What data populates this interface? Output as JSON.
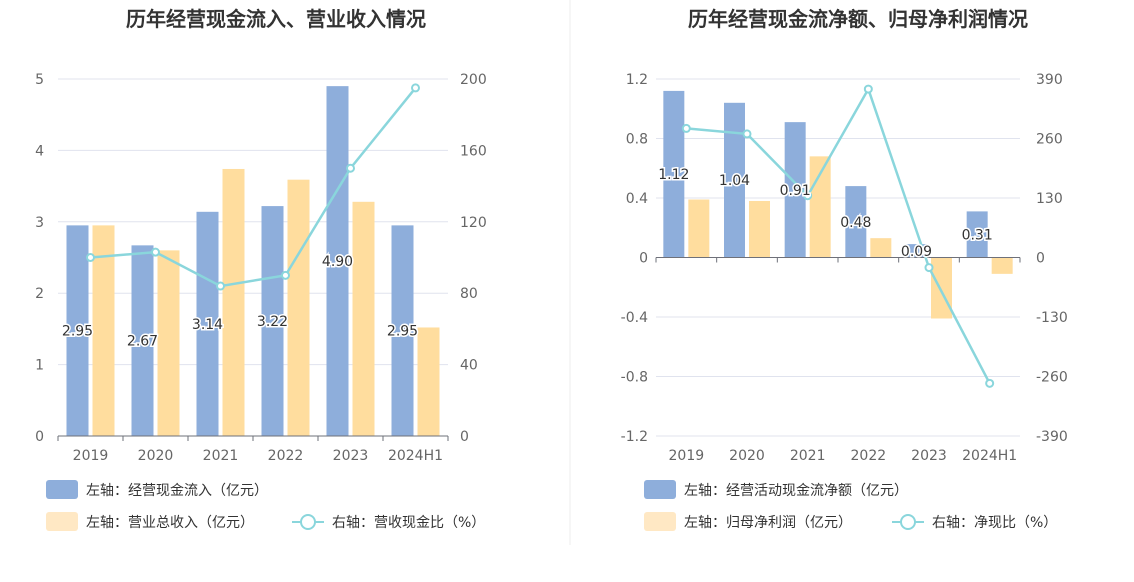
{
  "chart_data": [
    {
      "type": "bar",
      "title": "历年经营现金流入、营业收入情况",
      "categories": [
        "2019",
        "2020",
        "2021",
        "2022",
        "2023",
        "2024H1"
      ],
      "left_axis": {
        "ylim": [
          0,
          5
        ],
        "ticks": [
          "0",
          "1",
          "2",
          "3",
          "4",
          "5"
        ]
      },
      "right_axis": {
        "ylim": [
          0,
          200
        ],
        "ticks": [
          "0",
          "40",
          "80",
          "120",
          "160",
          "200"
        ]
      },
      "series": [
        {
          "name": "左轴：经营现金流入（亿元）",
          "axis": "left",
          "kind": "bar",
          "color": "#8eaedb",
          "values": [
            2.95,
            2.67,
            3.14,
            3.22,
            4.9,
            2.95
          ],
          "labels": [
            "2.95",
            "2.67",
            "3.14",
            "3.22",
            "4.90",
            "2.95"
          ]
        },
        {
          "name": "左轴：营业总收入（亿元）",
          "axis": "left",
          "kind": "bar",
          "color": "#ffdd9e",
          "values": [
            2.95,
            2.6,
            3.74,
            3.59,
            3.28,
            1.52
          ]
        },
        {
          "name": "右轴：营收现金比（%）",
          "axis": "right",
          "kind": "line",
          "color": "#8ad6dc",
          "values": [
            100,
            103,
            84,
            90,
            150,
            195
          ]
        }
      ],
      "legend": [
        {
          "label": "左轴：经营现金流入（亿元）",
          "kind": "bar",
          "color": "#8eaedb"
        },
        {
          "label": "左轴：营业总收入（亿元）",
          "kind": "bar",
          "color": "#ffe8c4"
        },
        {
          "label": "右轴：营收现金比（%）",
          "kind": "line",
          "color": "#8ad6dc"
        }
      ]
    },
    {
      "type": "bar",
      "title": "历年经营现金流净额、归母净利润情况",
      "categories": [
        "2019",
        "2020",
        "2021",
        "2022",
        "2023",
        "2024H1"
      ],
      "left_axis": {
        "ylim": [
          -1.2,
          1.2
        ],
        "ticks": [
          "-1.2",
          "-0.8",
          "-0.4",
          "0",
          "0.4",
          "0.8",
          "1.2"
        ]
      },
      "right_axis": {
        "ylim": [
          -390,
          390
        ],
        "ticks": [
          "-390",
          "-260",
          "-130",
          "0",
          "130",
          "260",
          "390"
        ]
      },
      "series": [
        {
          "name": "左轴：经营活动现金流净额（亿元）",
          "axis": "left",
          "kind": "bar",
          "color": "#8eaedb",
          "values": [
            1.12,
            1.04,
            0.91,
            0.48,
            0.09,
            0.31
          ],
          "labels": [
            "1.12",
            "1.04",
            "0.91",
            "0.48",
            "0.09",
            "0.31"
          ]
        },
        {
          "name": "左轴：归母净利润（亿元）",
          "axis": "left",
          "kind": "bar",
          "color": "#ffdd9e",
          "values": [
            0.39,
            0.38,
            0.68,
            0.13,
            -0.41,
            -0.11
          ]
        },
        {
          "name": "右轴：净现比（%）",
          "axis": "right",
          "kind": "line",
          "color": "#8ad6dc",
          "values": [
            282,
            270,
            135,
            368,
            -22,
            -275
          ]
        }
      ],
      "legend": [
        {
          "label": "左轴：经营活动现金流净额（亿元）",
          "kind": "bar",
          "color": "#8eaedb"
        },
        {
          "label": "左轴：归母净利润（亿元）",
          "kind": "bar",
          "color": "#ffe8c4"
        },
        {
          "label": "右轴：净现比（%）",
          "kind": "line",
          "color": "#8ad6dc"
        }
      ]
    }
  ]
}
